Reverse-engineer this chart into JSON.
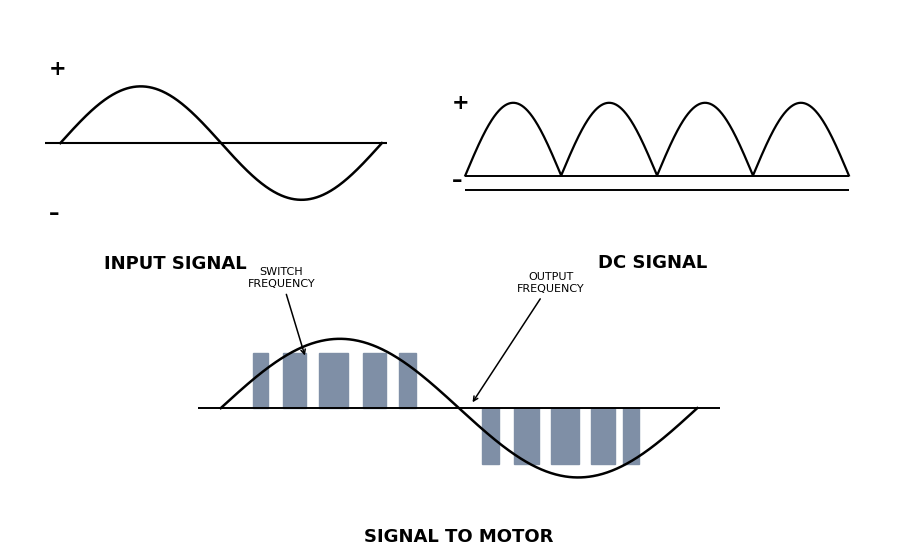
{
  "bg_color": "#ffffff",
  "input_signal_label": "INPUT SIGNAL",
  "dc_signal_label": "DC SIGNAL",
  "motor_signal_label": "SIGNAL TO MOTOR",
  "switch_freq_label": "SWITCH\nFREQUENCY",
  "output_freq_label": "OUTPUT\nFREQUENCY",
  "plus_label": "+",
  "minus_label": "–",
  "bar_color": "#7f8fa6",
  "line_color": "#000000",
  "label_fontsize": 13,
  "annotation_fontsize": 8,
  "plusminus_fontsize": 15
}
